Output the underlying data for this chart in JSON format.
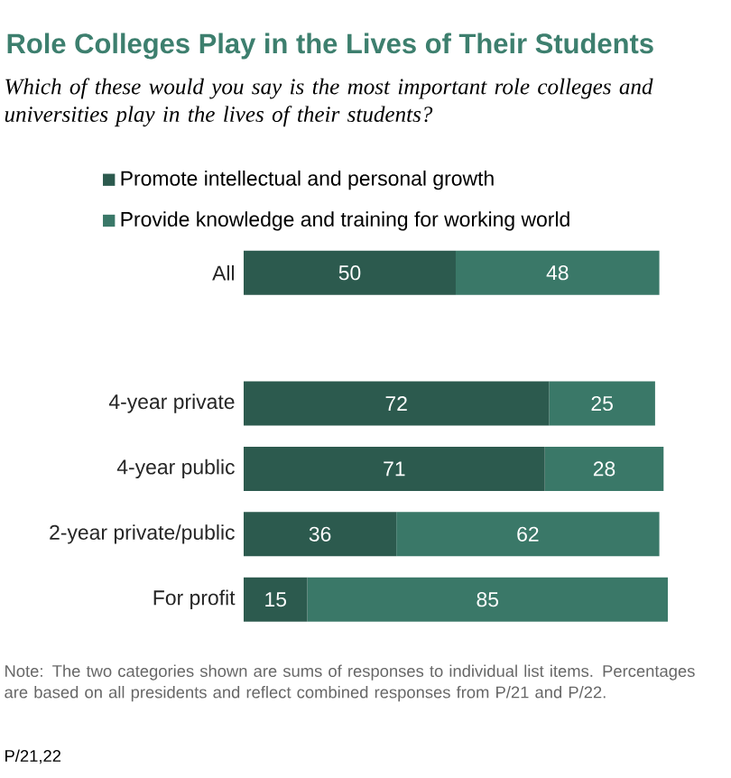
{
  "chart_data": {
    "type": "bar",
    "orientation": "horizontal",
    "stacked": true,
    "title": "Role Colleges Play in the Lives of Their Students",
    "subtitle": "Which of these would you say is the most important role colleges and universities play in the lives of their students?",
    "categories": [
      "All",
      null,
      "4-year private",
      "4-year public",
      "2-year private/public",
      "For profit"
    ],
    "series": [
      {
        "name": "Promote intellectual and personal growth",
        "color": "#2c5a4e",
        "values": [
          50,
          null,
          72,
          71,
          36,
          15
        ]
      },
      {
        "name": "Provide knowledge and training for working world",
        "color": "#3a7868",
        "values": [
          48,
          null,
          25,
          28,
          62,
          85
        ]
      }
    ],
    "data_labels": true,
    "legend": "top left",
    "tick_labels": "y",
    "annotations": [
      "Note: The two categories shown are sums of responses to individual list items. Percentages are based on all presidents and reflect combined responses from P/21 and P/22.",
      "P/21,22"
    ]
  }
}
